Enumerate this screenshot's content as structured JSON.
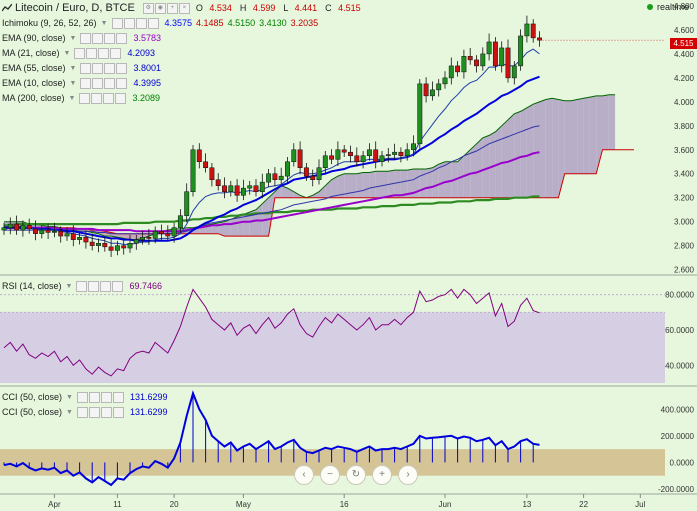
{
  "header": {
    "title": "Litecoin / Euro, D, BTCE",
    "ohlc": [
      {
        "label": "O",
        "value": "4.534"
      },
      {
        "label": "H",
        "value": "4.599"
      },
      {
        "label": "L",
        "value": "4.441"
      },
      {
        "label": "C",
        "value": "4.515"
      }
    ],
    "realtime_label": "realtime",
    "last_price": "4.515"
  },
  "indicators": {
    "ichimoku": {
      "name": "Ichimoku (9, 26, 52, 26)",
      "values": [
        "4.3575",
        "4.1485",
        "4.5150",
        "3.4130",
        "3.2035"
      ],
      "colors": [
        "#0000ff",
        "#c00000",
        "#008000",
        "#008000",
        "#c00000"
      ]
    },
    "ma_lines": [
      {
        "name": "EMA (90, close)",
        "value": "3.5783",
        "color": "#9900cc"
      },
      {
        "name": "MA (21, close)",
        "value": "4.2093",
        "color": "#0000cc"
      },
      {
        "name": "EMA (55, close)",
        "value": "3.8001",
        "color": "#0000cc"
      },
      {
        "name": "EMA (10, close)",
        "value": "4.3995",
        "color": "#0000cc"
      },
      {
        "name": "MA (200, close)",
        "value": "3.2089",
        "color": "#008000"
      }
    ],
    "rsi": {
      "name": "RSI (14, close)",
      "value": "69.7466",
      "color": "#800080"
    },
    "cci": [
      {
        "name": "CCI (50, close)",
        "value": "131.6299",
        "color": "#0000cc"
      },
      {
        "name": "CCI (50, close)",
        "value": "131.6299",
        "color": "#0000cc"
      }
    ]
  },
  "nav_buttons": [
    {
      "name": "scroll-left",
      "glyph": "‹"
    },
    {
      "name": "zoom-out",
      "glyph": "−"
    },
    {
      "name": "reset",
      "glyph": "↻"
    },
    {
      "name": "zoom-in",
      "glyph": "+"
    },
    {
      "name": "scroll-right",
      "glyph": "›"
    }
  ],
  "chart_data": {
    "type": "candlestick",
    "price_axis": {
      "ticks": [
        "4.800",
        "4.600",
        "4.400",
        "4.200",
        "4.000",
        "3.800",
        "3.600",
        "3.400",
        "3.200",
        "3.000",
        "2.800",
        "2.600"
      ],
      "range": [
        2.58,
        4.85
      ]
    },
    "rsi_axis": {
      "ticks": [
        "80.0000",
        "60.0000",
        "40.0000"
      ],
      "range": [
        30,
        90
      ],
      "band": [
        30,
        70
      ]
    },
    "cci_axis": {
      "ticks": [
        "400.0000",
        "200.0000",
        "0.0000",
        "-200.0000"
      ],
      "range": [
        -230,
        560
      ],
      "band": [
        -100,
        100
      ]
    },
    "x_ticks": [
      {
        "label": "Apr",
        "i": 8
      },
      {
        "label": "11",
        "i": 18
      },
      {
        "label": "20",
        "i": 27
      },
      {
        "label": "May",
        "i": 38
      },
      {
        "label": "16",
        "i": 54
      },
      {
        "label": "Jun",
        "i": 70
      },
      {
        "label": "13",
        "i": 83
      },
      {
        "label": "22",
        "i": 92
      },
      {
        "label": "Jul",
        "i": 101
      }
    ],
    "closes": [
      2.95,
      2.98,
      2.93,
      2.97,
      2.94,
      2.9,
      2.93,
      2.91,
      2.92,
      2.88,
      2.9,
      2.85,
      2.87,
      2.83,
      2.8,
      2.82,
      2.79,
      2.76,
      2.8,
      2.78,
      2.82,
      2.85,
      2.87,
      2.86,
      2.92,
      2.9,
      2.88,
      2.95,
      3.05,
      3.25,
      3.6,
      3.5,
      3.45,
      3.35,
      3.3,
      3.25,
      3.3,
      3.22,
      3.28,
      3.3,
      3.25,
      3.33,
      3.4,
      3.35,
      3.38,
      3.5,
      3.6,
      3.45,
      3.38,
      3.35,
      3.45,
      3.55,
      3.52,
      3.6,
      3.58,
      3.55,
      3.5,
      3.55,
      3.6,
      3.5,
      3.55,
      3.56,
      3.58,
      3.55,
      3.6,
      3.65,
      4.15,
      4.05,
      4.1,
      4.15,
      4.2,
      4.3,
      4.25,
      4.38,
      4.35,
      4.3,
      4.4,
      4.5,
      4.3,
      4.45,
      4.2,
      4.3,
      4.55,
      4.65,
      4.534,
      4.515
    ],
    "ema10": [
      2.96,
      2.96,
      2.96,
      2.96,
      2.95,
      2.94,
      2.94,
      2.93,
      2.93,
      2.92,
      2.91,
      2.9,
      2.89,
      2.88,
      2.86,
      2.85,
      2.84,
      2.82,
      2.82,
      2.81,
      2.81,
      2.82,
      2.83,
      2.83,
      2.85,
      2.86,
      2.86,
      2.87,
      2.9,
      2.98,
      3.09,
      3.16,
      3.21,
      3.23,
      3.24,
      3.24,
      3.25,
      3.24,
      3.25,
      3.26,
      3.25,
      3.27,
      3.29,
      3.3,
      3.31,
      3.35,
      3.39,
      3.41,
      3.4,
      3.4,
      3.41,
      3.43,
      3.45,
      3.48,
      3.5,
      3.5,
      3.5,
      3.51,
      3.52,
      3.52,
      3.52,
      3.53,
      3.53,
      3.53,
      3.54,
      3.56,
      3.67,
      3.74,
      3.81,
      3.88,
      3.94,
      4.01,
      4.06,
      4.12,
      4.16,
      4.18,
      4.23,
      4.29,
      4.29,
      4.32,
      4.3,
      4.3,
      4.35,
      4.41,
      4.44,
      4.4
    ],
    "ma21": [
      2.95,
      2.95,
      2.95,
      2.95,
      2.95,
      2.94,
      2.94,
      2.94,
      2.93,
      2.93,
      2.92,
      2.92,
      2.91,
      2.9,
      2.89,
      2.88,
      2.87,
      2.86,
      2.86,
      2.85,
      2.85,
      2.84,
      2.84,
      2.84,
      2.84,
      2.84,
      2.84,
      2.85,
      2.86,
      2.89,
      2.93,
      2.96,
      2.99,
      3.01,
      3.04,
      3.06,
      3.09,
      3.11,
      3.14,
      3.16,
      3.18,
      3.21,
      3.24,
      3.27,
      3.3,
      3.32,
      3.35,
      3.36,
      3.37,
      3.38,
      3.39,
      3.4,
      3.42,
      3.43,
      3.44,
      3.46,
      3.47,
      3.48,
      3.49,
      3.5,
      3.51,
      3.52,
      3.52,
      3.53,
      3.54,
      3.56,
      3.6,
      3.63,
      3.66,
      3.7,
      3.73,
      3.77,
      3.8,
      3.84,
      3.87,
      3.9,
      3.94,
      3.98,
      4.01,
      4.05,
      4.07,
      4.1,
      4.13,
      4.17,
      4.19,
      4.21
    ],
    "ema55": [
      2.93,
      2.93,
      2.93,
      2.93,
      2.93,
      2.93,
      2.93,
      2.93,
      2.93,
      2.93,
      2.93,
      2.92,
      2.92,
      2.92,
      2.92,
      2.91,
      2.91,
      2.9,
      2.9,
      2.9,
      2.9,
      2.9,
      2.9,
      2.9,
      2.9,
      2.9,
      2.9,
      2.9,
      2.91,
      2.92,
      2.94,
      2.96,
      2.98,
      2.99,
      3.0,
      3.01,
      3.02,
      3.03,
      3.04,
      3.05,
      3.06,
      3.07,
      3.08,
      3.09,
      3.1,
      3.12,
      3.14,
      3.15,
      3.16,
      3.17,
      3.18,
      3.19,
      3.21,
      3.22,
      3.23,
      3.24,
      3.25,
      3.26,
      3.28,
      3.29,
      3.3,
      3.31,
      3.32,
      3.33,
      3.34,
      3.35,
      3.38,
      3.4,
      3.42,
      3.45,
      3.47,
      3.5,
      3.52,
      3.55,
      3.57,
      3.59,
      3.62,
      3.65,
      3.67,
      3.69,
      3.71,
      3.73,
      3.75,
      3.77,
      3.79,
      3.8
    ],
    "ema90": [
      2.95,
      2.95,
      2.95,
      2.95,
      2.95,
      2.95,
      2.95,
      2.95,
      2.95,
      2.94,
      2.94,
      2.94,
      2.94,
      2.94,
      2.94,
      2.93,
      2.93,
      2.93,
      2.93,
      2.93,
      2.93,
      2.92,
      2.92,
      2.92,
      2.92,
      2.92,
      2.92,
      2.92,
      2.92,
      2.93,
      2.94,
      2.95,
      2.96,
      2.97,
      2.97,
      2.98,
      2.98,
      2.99,
      3.0,
      3.0,
      3.01,
      3.01,
      3.02,
      3.03,
      3.04,
      3.05,
      3.06,
      3.07,
      3.08,
      3.09,
      3.1,
      3.11,
      3.12,
      3.13,
      3.14,
      3.15,
      3.16,
      3.17,
      3.18,
      3.19,
      3.2,
      3.21,
      3.22,
      3.22,
      3.23,
      3.24,
      3.26,
      3.28,
      3.29,
      3.31,
      3.33,
      3.34,
      3.36,
      3.38,
      3.4,
      3.41,
      3.43,
      3.45,
      3.47,
      3.49,
      3.5,
      3.52,
      3.54,
      3.55,
      3.57,
      3.58
    ],
    "ma200": [
      2.97,
      2.97,
      2.98,
      2.98,
      2.98,
      2.98,
      2.98,
      2.98,
      2.98,
      2.98,
      2.98,
      2.98,
      2.98,
      2.98,
      2.98,
      2.98,
      2.98,
      2.98,
      2.98,
      2.99,
      2.99,
      2.99,
      2.99,
      2.99,
      3.0,
      3.0,
      3.0,
      3.0,
      3.01,
      3.01,
      3.02,
      3.02,
      3.03,
      3.03,
      3.04,
      3.04,
      3.05,
      3.05,
      3.06,
      3.06,
      3.07,
      3.07,
      3.07,
      3.08,
      3.08,
      3.08,
      3.09,
      3.09,
      3.09,
      3.1,
      3.1,
      3.1,
      3.1,
      3.11,
      3.11,
      3.11,
      3.11,
      3.12,
      3.12,
      3.12,
      3.13,
      3.13,
      3.13,
      3.14,
      3.14,
      3.14,
      3.15,
      3.15,
      3.15,
      3.16,
      3.16,
      3.16,
      3.17,
      3.17,
      3.17,
      3.18,
      3.18,
      3.18,
      3.19,
      3.19,
      3.19,
      3.2,
      3.2,
      3.2,
      3.21,
      3.21
    ],
    "kumo_a": [
      3.0,
      3.0,
      3.0,
      3.0,
      2.98,
      2.98,
      2.97,
      2.96,
      2.96,
      2.95,
      2.94,
      2.93,
      2.92,
      2.92,
      2.91,
      2.9,
      2.88,
      2.88,
      2.87,
      2.86,
      2.85,
      2.85,
      2.86,
      2.88,
      2.9,
      2.92,
      2.93,
      2.94,
      2.94,
      2.95,
      2.95,
      2.96,
      2.97,
      2.98,
      2.99,
      3.0,
      3.02,
      3.04,
      3.06,
      3.08,
      3.1,
      3.15,
      3.2,
      3.25,
      3.3,
      3.28,
      3.25,
      3.22,
      3.2,
      3.22,
      3.25,
      3.3,
      3.35,
      3.38,
      3.4,
      3.4,
      3.4,
      3.41,
      3.41,
      3.42,
      3.42,
      3.42,
      3.43,
      3.43,
      3.43,
      3.44,
      3.44,
      3.44,
      3.45,
      3.48,
      3.5,
      3.5,
      3.5,
      3.55,
      3.6,
      3.65,
      3.7,
      3.72,
      3.75,
      3.8,
      3.85,
      3.9,
      3.92,
      3.95,
      3.98,
      4.0,
      4.02,
      4.03,
      4.02,
      4.01,
      4.01,
      4.02,
      4.03,
      4.04,
      4.05,
      4.05,
      4.06,
      4.06
    ],
    "kumo_b": [
      2.95,
      2.95,
      2.95,
      2.95,
      2.95,
      2.95,
      2.95,
      2.95,
      2.95,
      2.95,
      2.95,
      2.95,
      2.94,
      2.94,
      2.93,
      2.93,
      2.92,
      2.91,
      2.9,
      2.9,
      2.9,
      2.9,
      2.9,
      2.9,
      2.9,
      2.9,
      2.9,
      2.9,
      2.9,
      2.9,
      2.9,
      2.9,
      2.9,
      2.9,
      2.9,
      2.88,
      2.88,
      2.88,
      2.88,
      2.88,
      2.88,
      2.88,
      2.88,
      3.2,
      3.2,
      3.2,
      3.2,
      3.2,
      3.2,
      3.2,
      3.2,
      3.2,
      3.2,
      3.2,
      3.2,
      3.2,
      3.2,
      3.2,
      3.2,
      3.2,
      3.2,
      3.2,
      3.2,
      3.2,
      3.2,
      3.2,
      3.2,
      3.2,
      3.2,
      3.2,
      3.2,
      3.2,
      3.2,
      3.2,
      3.2,
      3.2,
      3.2,
      3.2,
      3.2,
      3.2,
      3.2,
      3.2,
      3.2,
      3.2,
      3.2,
      3.2,
      3.2,
      3.2,
      3.2,
      3.4,
      3.4,
      3.4,
      3.4,
      3.4,
      3.4,
      3.6,
      3.6,
      3.6,
      3.6,
      3.6,
      3.6
    ],
    "rsi": [
      50,
      53,
      48,
      52,
      46,
      44,
      47,
      45,
      48,
      42,
      45,
      40,
      43,
      38,
      35,
      39,
      36,
      34,
      38,
      37,
      44,
      47,
      48,
      47,
      53,
      50,
      47,
      54,
      62,
      73,
      83,
      78,
      73,
      66,
      63,
      60,
      64,
      57,
      61,
      63,
      58,
      63,
      67,
      61,
      64,
      69,
      72,
      63,
      58,
      56,
      62,
      67,
      64,
      69,
      66,
      63,
      60,
      63,
      67,
      60,
      63,
      63,
      66,
      63,
      67,
      70,
      82,
      76,
      77,
      79,
      80,
      83,
      78,
      83,
      80,
      75,
      78,
      81,
      68,
      75,
      62,
      65,
      74,
      78,
      71,
      69.75
    ],
    "cci": [
      -20,
      -10,
      -30,
      -5,
      -40,
      -60,
      -45,
      -55,
      -40,
      -80,
      -60,
      -100,
      -75,
      -120,
      -150,
      -110,
      -140,
      -170,
      -120,
      -130,
      -80,
      -50,
      -30,
      -40,
      10,
      -10,
      -40,
      30,
      150,
      350,
      520,
      400,
      320,
      200,
      160,
      120,
      150,
      90,
      120,
      140,
      100,
      130,
      160,
      100,
      120,
      150,
      170,
      110,
      80,
      70,
      90,
      110,
      100,
      120,
      110,
      100,
      80,
      100,
      120,
      90,
      100,
      100,
      110,
      100,
      120,
      140,
      200,
      180,
      185,
      190,
      195,
      200,
      180,
      195,
      185,
      160,
      170,
      185,
      130,
      160,
      100,
      120,
      160,
      175,
      140,
      131.63
    ]
  }
}
